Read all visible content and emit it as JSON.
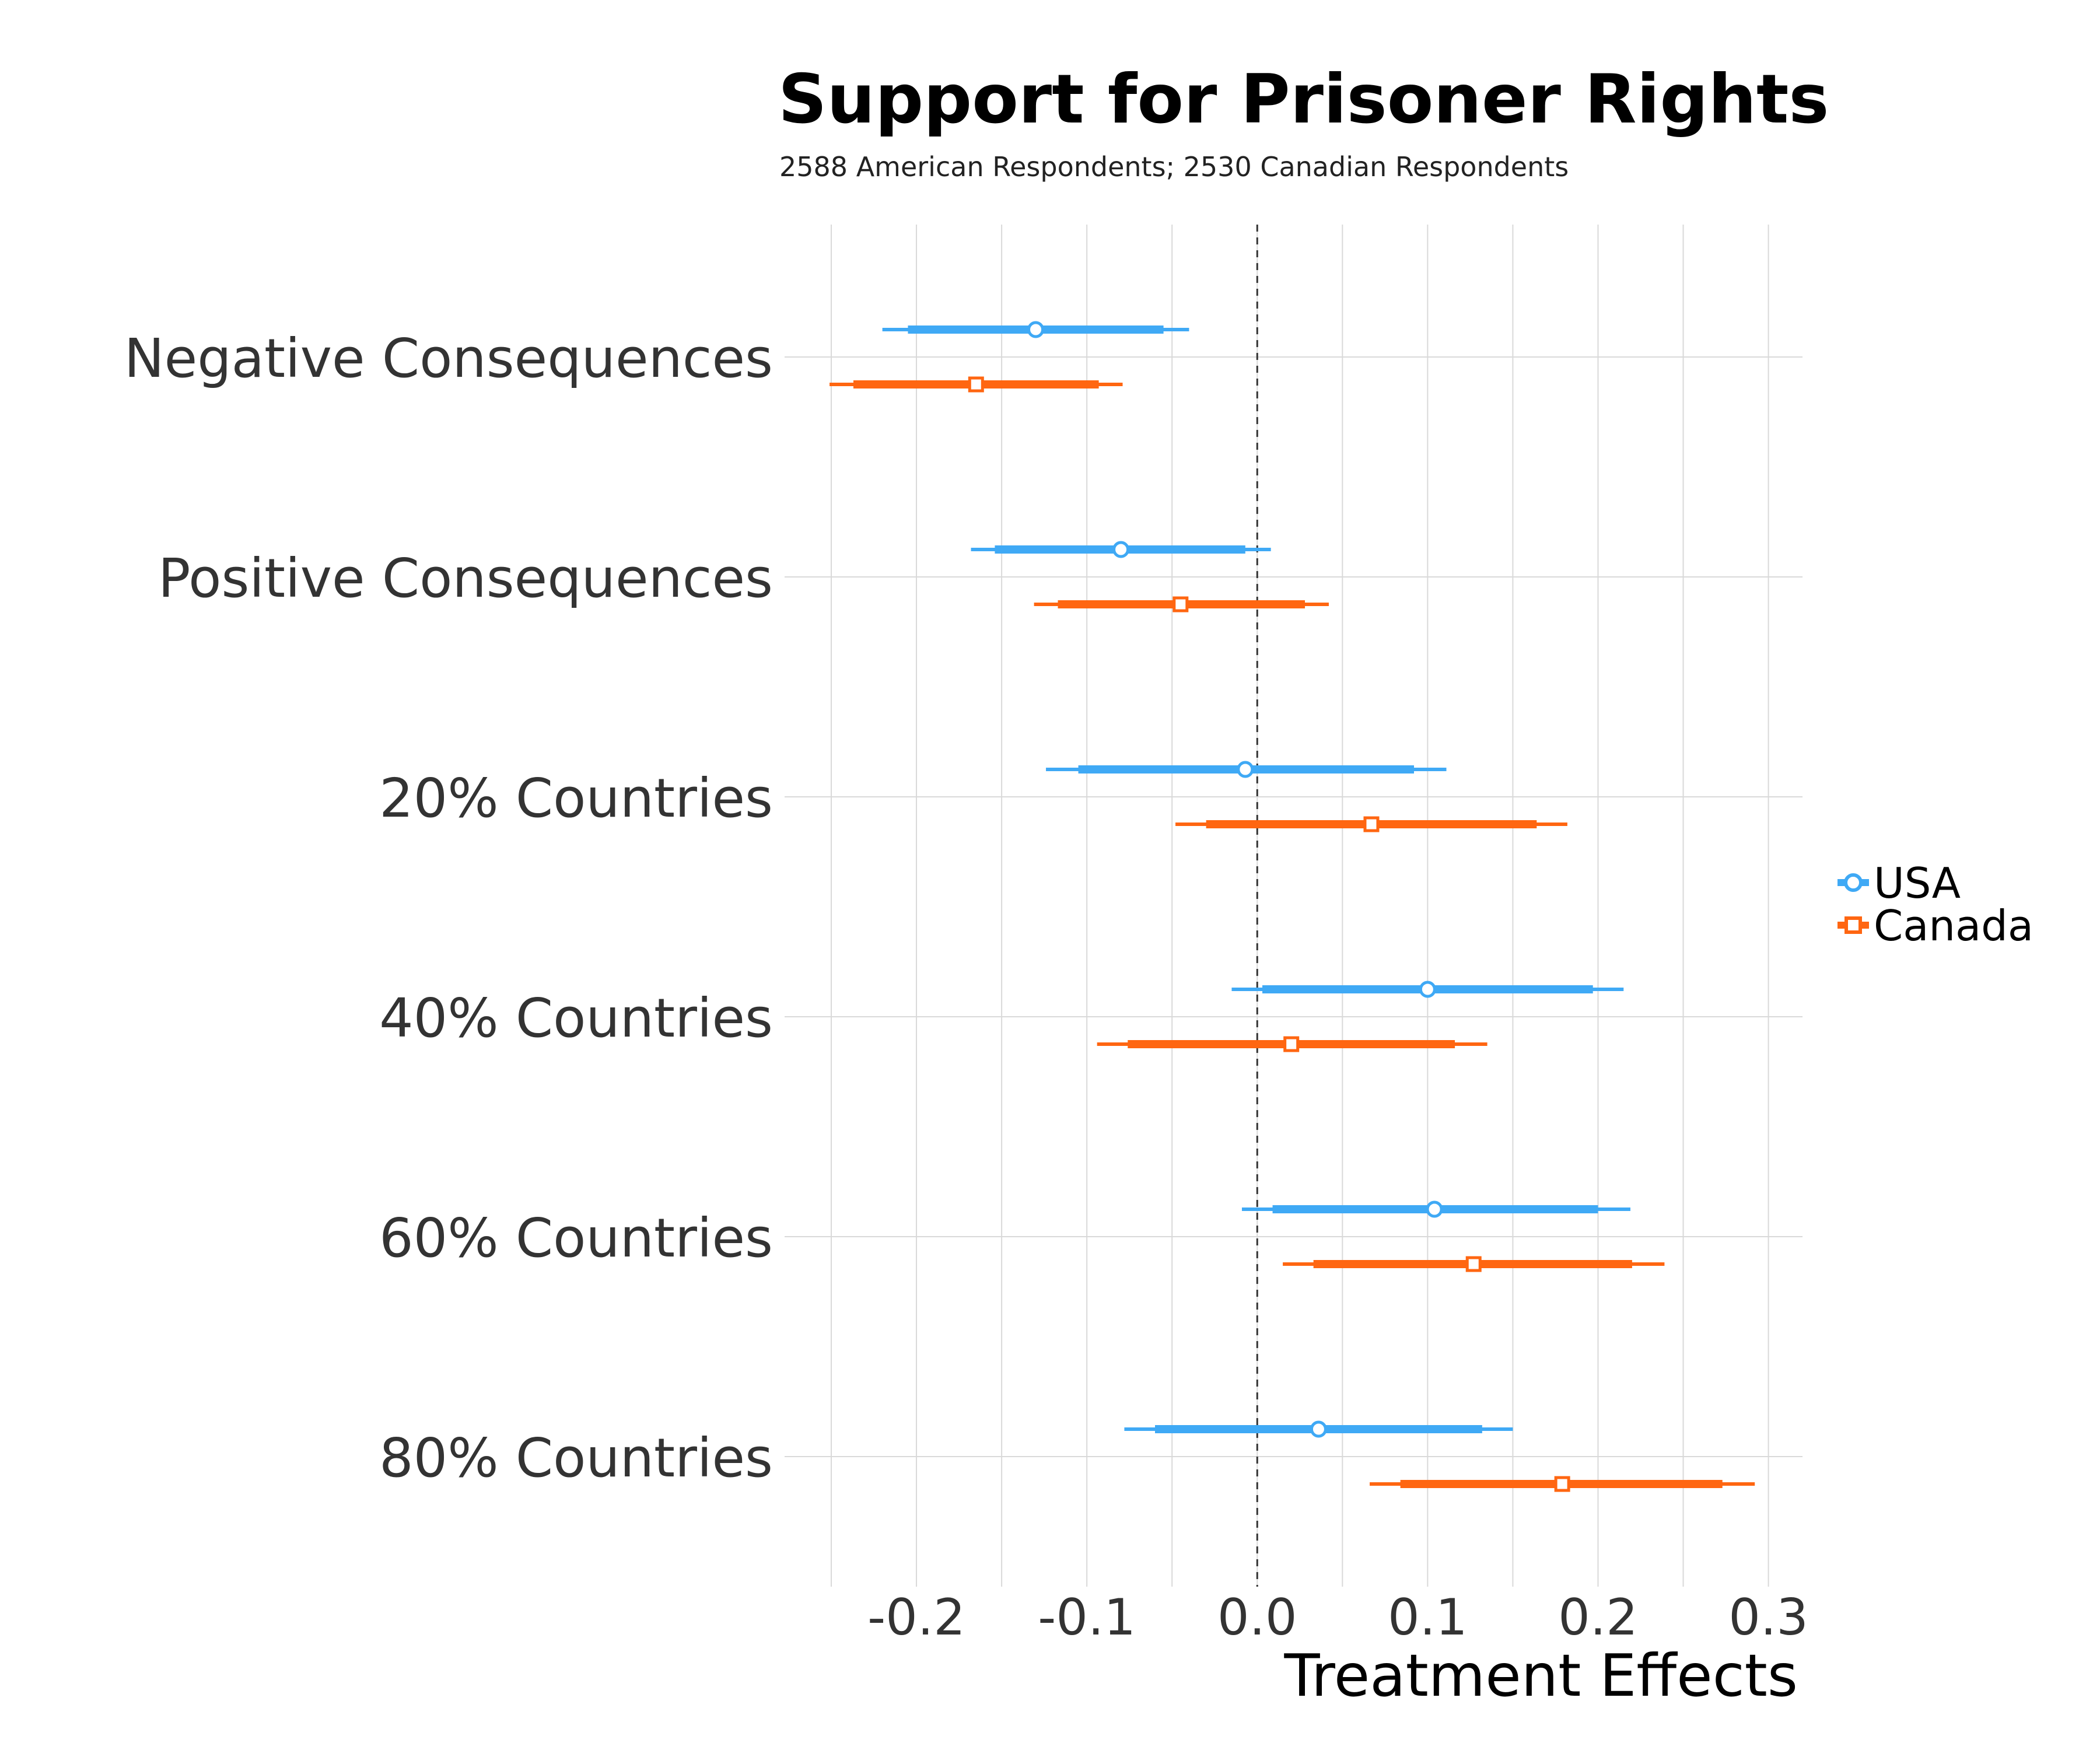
{
  "chart_data": {
    "type": "scatter",
    "title": "Support for Prisoner Rights",
    "subtitle": "2588 American Respondents; 2530 Canadian Respondents",
    "xlabel": "Treatment Effects",
    "ylabel": "",
    "xlim": [
      -0.25,
      0.32
    ],
    "xticks": [
      -0.2,
      -0.1,
      0.0,
      0.1,
      0.2,
      0.3
    ],
    "xtick_labels": [
      "-0.2",
      "-0.1",
      "0.0",
      "0.1",
      "0.2",
      "0.3"
    ],
    "reference_line": 0,
    "grid": true,
    "legend_position": "right",
    "categories": [
      "Negative Consequences",
      "Positive Consequences",
      "20% Countries",
      "40% Countries",
      "60% Countries",
      "80% Countries"
    ],
    "series": [
      {
        "name": "USA",
        "color": "#3fa9f5",
        "marker": "circle",
        "estimate": [
          -0.13,
          -0.08,
          -0.007,
          0.1,
          0.104,
          0.036
        ],
        "ci90": [
          [
            -0.205,
            -0.055
          ],
          [
            -0.154,
            -0.007
          ],
          [
            -0.105,
            0.092
          ],
          [
            0.003,
            0.197
          ],
          [
            0.009,
            0.2
          ],
          [
            -0.06,
            0.132
          ]
        ],
        "ci95": [
          [
            -0.22,
            -0.04
          ],
          [
            -0.168,
            0.008
          ],
          [
            -0.124,
            0.111
          ],
          [
            -0.015,
            0.215
          ],
          [
            -0.009,
            0.219
          ],
          [
            -0.078,
            0.15
          ]
        ]
      },
      {
        "name": "Canada",
        "color": "#ff6611",
        "marker": "square",
        "estimate": [
          -0.165,
          -0.045,
          0.067,
          0.02,
          0.127,
          0.179
        ],
        "ci90": [
          [
            -0.237,
            -0.093
          ],
          [
            -0.117,
            0.028
          ],
          [
            -0.03,
            0.164
          ],
          [
            -0.076,
            0.116
          ],
          [
            0.033,
            0.22
          ],
          [
            0.084,
            0.273
          ]
        ],
        "ci95": [
          [
            -0.251,
            -0.079
          ],
          [
            -0.131,
            0.042
          ],
          [
            -0.048,
            0.182
          ],
          [
            -0.094,
            0.135
          ],
          [
            0.015,
            0.239
          ],
          [
            0.066,
            0.292
          ]
        ]
      }
    ]
  }
}
